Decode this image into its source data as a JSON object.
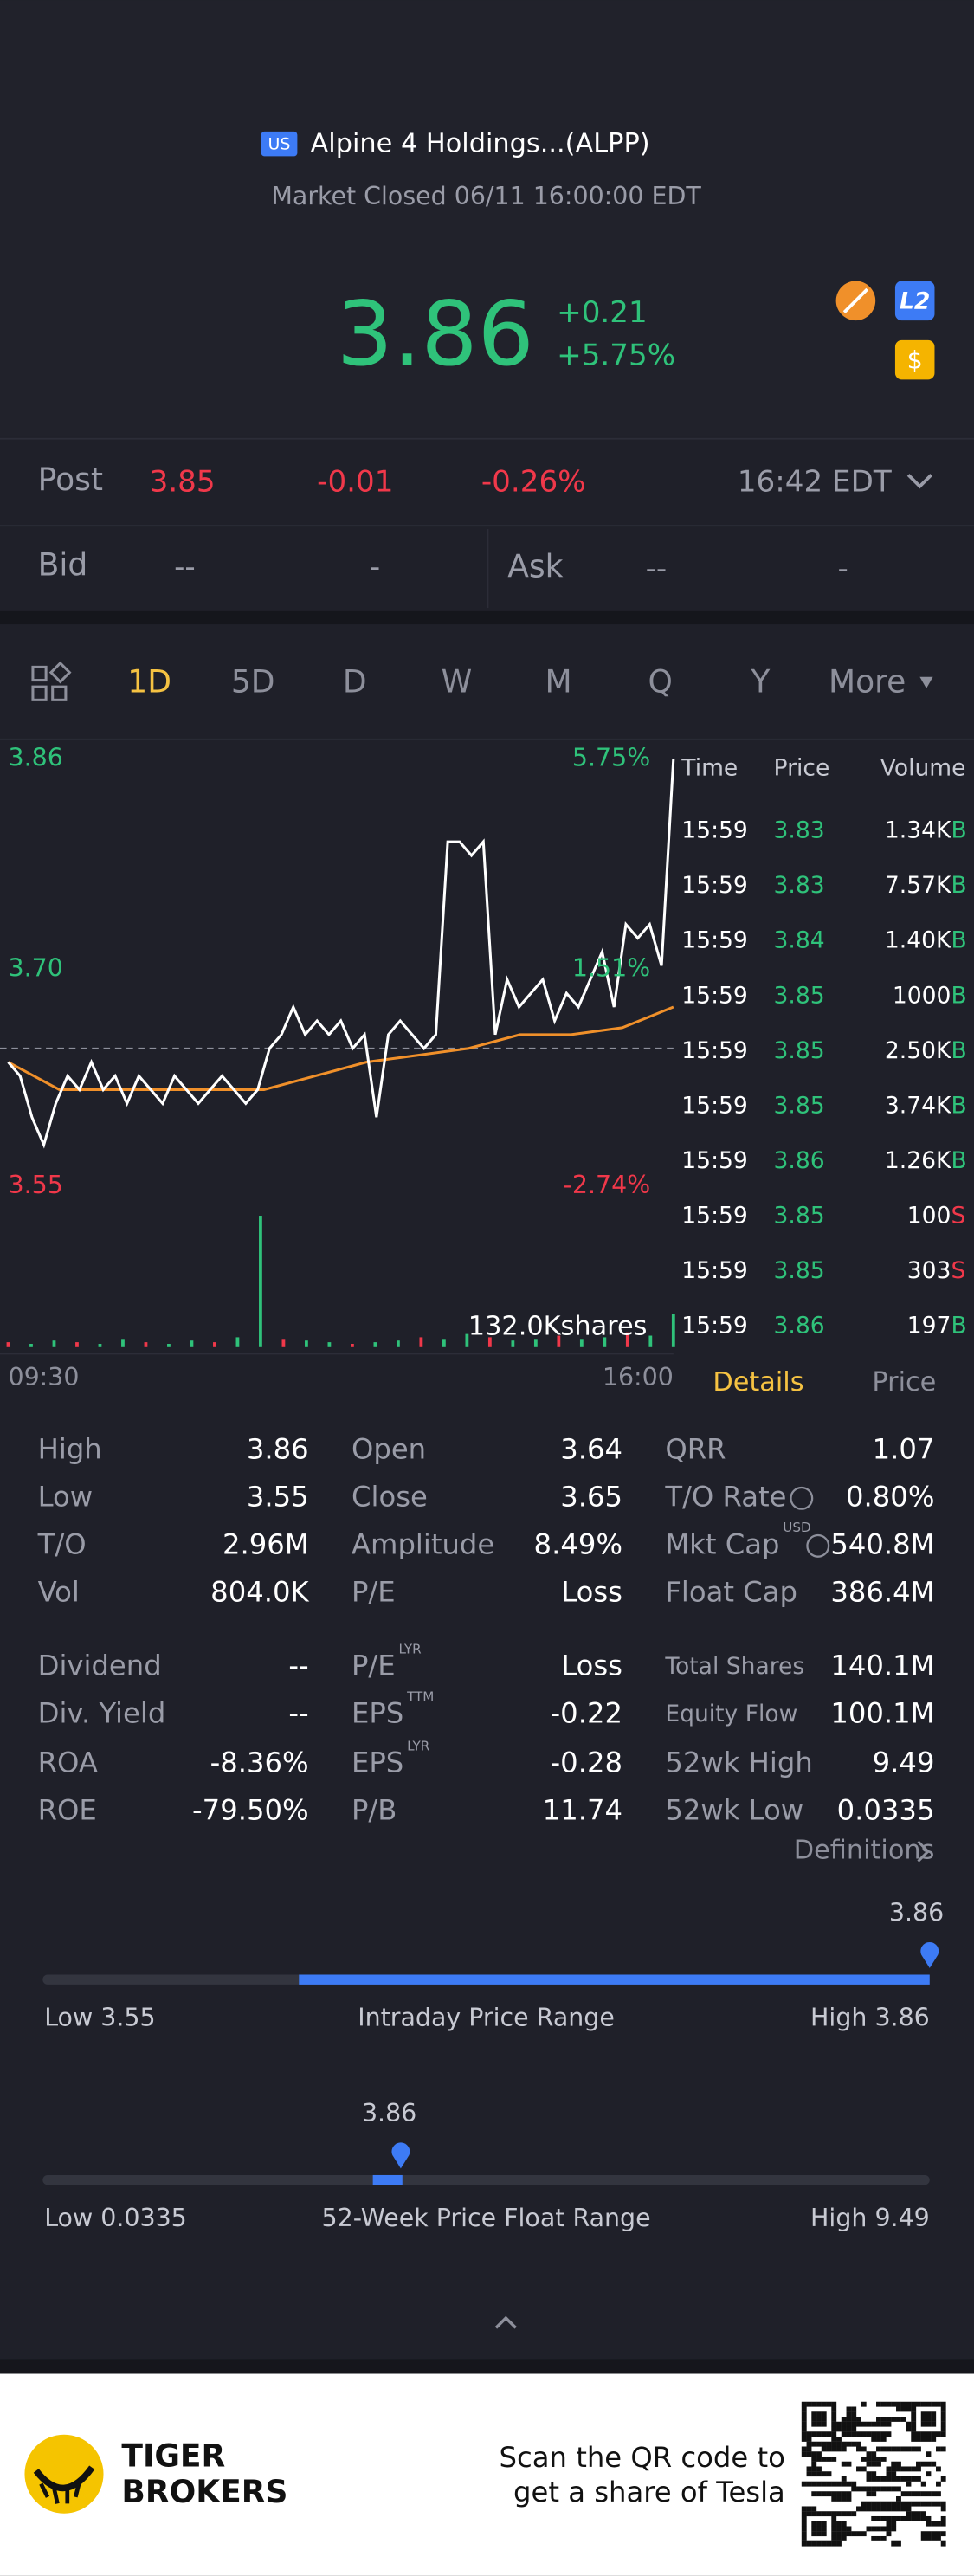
{
  "header": {
    "badge": "US",
    "name": "Alpine 4 Holdings...(ALPP)",
    "status": "Market Closed 06/11 16:00:00 EDT"
  },
  "quote": {
    "price": "3.86",
    "change": "+0.21",
    "change_pct": "+5.75%"
  },
  "post": {
    "label": "Post",
    "price": "3.85",
    "change": "-0.01",
    "change_pct": "-0.26%",
    "time": "16:42 EDT"
  },
  "bid_ask": {
    "bid_label": "Bid",
    "bid": "--",
    "bid_size": "-",
    "ask_label": "Ask",
    "ask": "--",
    "ask_size": "-"
  },
  "tabs": [
    "1D",
    "5D",
    "D",
    "W",
    "M",
    "Q",
    "Y",
    "More"
  ],
  "intraday": {
    "price_top": "3.86",
    "price_mid": "3.70",
    "price_bottom": "3.55",
    "pct_top": "5.75%",
    "pct_mid": "1.51%",
    "pct_bottom": "-2.74%",
    "volume_label": "132.0Kshares",
    "time_start": "09:30",
    "time_end": "16:00",
    "ylim": [
      3.55,
      3.86
    ],
    "prev_close": 3.65,
    "prices": [
      3.64,
      3.63,
      3.6,
      3.58,
      3.61,
      3.63,
      3.62,
      3.64,
      3.62,
      3.63,
      3.61,
      3.63,
      3.62,
      3.61,
      3.63,
      3.62,
      3.61,
      3.62,
      3.63,
      3.62,
      3.61,
      3.62,
      3.65,
      3.66,
      3.68,
      3.66,
      3.67,
      3.66,
      3.67,
      3.65,
      3.66,
      3.6,
      3.66,
      3.67,
      3.66,
      3.65,
      3.66,
      3.8,
      3.8,
      3.79,
      3.8,
      3.66,
      3.7,
      3.68,
      3.69,
      3.7,
      3.67,
      3.69,
      3.68,
      3.7,
      3.72,
      3.68,
      3.74,
      3.73,
      3.74,
      3.71,
      3.86
    ],
    "avg": [
      3.64,
      3.62,
      3.62,
      3.62,
      3.62,
      3.62,
      3.63,
      3.64,
      3.645,
      3.65,
      3.66,
      3.66,
      3.665,
      3.68
    ],
    "volumes": [
      3,
      2,
      4,
      3,
      2,
      5,
      3,
      2,
      4,
      3,
      6,
      80,
      5,
      4,
      3,
      2,
      3,
      4,
      6,
      5,
      8,
      6,
      4,
      5,
      7,
      5,
      6,
      9,
      7,
      20
    ]
  },
  "trades": {
    "headers": [
      "Time",
      "Price",
      "Volume"
    ],
    "rows": [
      [
        "15:59",
        "3.83",
        "1.34K",
        "B"
      ],
      [
        "15:59",
        "3.83",
        "7.57K",
        "B"
      ],
      [
        "15:59",
        "3.84",
        "1.40K",
        "B"
      ],
      [
        "15:59",
        "3.85",
        "1000",
        "B"
      ],
      [
        "15:59",
        "3.85",
        "2.50K",
        "B"
      ],
      [
        "15:59",
        "3.85",
        "3.74K",
        "B"
      ],
      [
        "15:59",
        "3.86",
        "1.26K",
        "B"
      ],
      [
        "15:59",
        "3.85",
        "100",
        "S"
      ],
      [
        "15:59",
        "3.85",
        "303",
        "S"
      ],
      [
        "15:59",
        "3.86",
        "197",
        "B"
      ]
    ],
    "tabs": [
      "Details",
      "Price"
    ]
  },
  "stats": [
    [
      {
        "label": "High",
        "value": "3.86"
      },
      {
        "label": "Low",
        "value": "3.55"
      },
      {
        "label": "T/O",
        "value": "2.96M"
      },
      {
        "label": "Vol",
        "value": "804.0K"
      },
      {
        "label": "Dividend",
        "value": "--"
      },
      {
        "label": "Div. Yield",
        "value": "--"
      },
      {
        "label": "ROA",
        "value": "-8.36%"
      },
      {
        "label": "ROE",
        "value": "-79.50%"
      }
    ],
    [
      {
        "label": "Open",
        "value": "3.64"
      },
      {
        "label": "Close",
        "value": "3.65"
      },
      {
        "label": "Amplitude",
        "value": "8.49%"
      },
      {
        "label": "P/E",
        "value": "Loss"
      },
      {
        "label": "P/E",
        "sup": "LYR",
        "value": "Loss"
      },
      {
        "label": "EPS",
        "sup": "TTM",
        "value": "-0.22"
      },
      {
        "label": "EPS",
        "sup": "LYR",
        "value": "-0.28"
      },
      {
        "label": "P/B",
        "value": "11.74"
      }
    ],
    [
      {
        "label": "QRR",
        "value": "1.07"
      },
      {
        "label": "T/O Rate",
        "value": "0.80%"
      },
      {
        "label": "Mkt Cap",
        "sup": "USD",
        "value": "540.8M"
      },
      {
        "label": "Float Cap",
        "value": "386.4M"
      },
      {
        "label": "Total Shares",
        "value": "140.1M"
      },
      {
        "label": "Equity Flow",
        "value": "100.1M"
      },
      {
        "label": "52wk High",
        "value": "9.49"
      },
      {
        "label": "52wk Low",
        "value": "0.0335"
      }
    ]
  ],
  "definitions": "Definitions",
  "ranges": [
    {
      "current": "3.86",
      "low": "Low 3.55",
      "title": "Intraday Price Range",
      "high": "High 3.86"
    },
    {
      "current": "3.86",
      "low": "Low 0.0335",
      "title": "52-Week Price Float Range",
      "high": "High 9.49"
    }
  ],
  "footer": {
    "brand_line1": "TIGER",
    "brand_line2": "BROKERS",
    "line1": "Scan the QR code to",
    "line2": "get a share of Tesla"
  }
}
